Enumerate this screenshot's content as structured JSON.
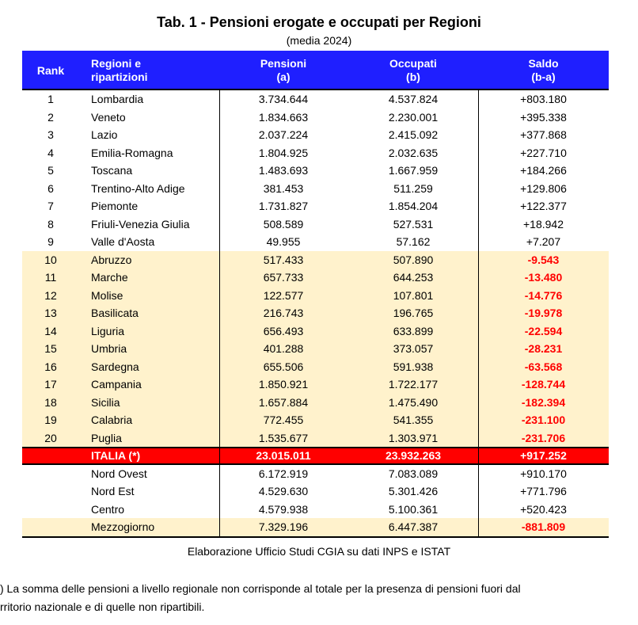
{
  "title": "Tab. 1 - Pensioni erogate e occupati per Regioni",
  "subtitle": "(media 2024)",
  "colors": {
    "header_bg": "#1f1fff",
    "negative_bg": "#fff2cc",
    "total_bg": "#ff0000",
    "negative_text": "#ff0000"
  },
  "headers": {
    "rank": "Rank",
    "region_1": "Regioni e",
    "region_2": "ripartizioni",
    "pensioni_1": "Pensioni",
    "pensioni_2": "(a)",
    "occupati_1": "Occupati",
    "occupati_2": "(b)",
    "saldo_1": "Saldo",
    "saldo_2": "(b-a)"
  },
  "rows": [
    {
      "rank": "1",
      "region": "Lombardia",
      "pensioni": "3.734.644",
      "occupati": "4.537.824",
      "saldo": "+803.180"
    },
    {
      "rank": "2",
      "region": "Veneto",
      "pensioni": "1.834.663",
      "occupati": "2.230.001",
      "saldo": "+395.338"
    },
    {
      "rank": "3",
      "region": "Lazio",
      "pensioni": "2.037.224",
      "occupati": "2.415.092",
      "saldo": "+377.868"
    },
    {
      "rank": "4",
      "region": "Emilia-Romagna",
      "pensioni": "1.804.925",
      "occupati": "2.032.635",
      "saldo": "+227.710"
    },
    {
      "rank": "5",
      "region": "Toscana",
      "pensioni": "1.483.693",
      "occupati": "1.667.959",
      "saldo": "+184.266"
    },
    {
      "rank": "6",
      "region": "Trentino-Alto Adige",
      "pensioni": "381.453",
      "occupati": "511.259",
      "saldo": "+129.806"
    },
    {
      "rank": "7",
      "region": "Piemonte",
      "pensioni": "1.731.827",
      "occupati": "1.854.204",
      "saldo": "+122.377"
    },
    {
      "rank": "8",
      "region": "Friuli-Venezia Giulia",
      "pensioni": "508.589",
      "occupati": "527.531",
      "saldo": "+18.942"
    },
    {
      "rank": "9",
      "region": "Valle d'Aosta",
      "pensioni": "49.955",
      "occupati": "57.162",
      "saldo": "+7.207"
    },
    {
      "rank": "10",
      "region": "Abruzzo",
      "pensioni": "517.433",
      "occupati": "507.890",
      "saldo": "-9.543"
    },
    {
      "rank": "11",
      "region": "Marche",
      "pensioni": "657.733",
      "occupati": "644.253",
      "saldo": "-13.480"
    },
    {
      "rank": "12",
      "region": "Molise",
      "pensioni": "122.577",
      "occupati": "107.801",
      "saldo": "-14.776"
    },
    {
      "rank": "13",
      "region": "Basilicata",
      "pensioni": "216.743",
      "occupati": "196.765",
      "saldo": "-19.978"
    },
    {
      "rank": "14",
      "region": "Liguria",
      "pensioni": "656.493",
      "occupati": "633.899",
      "saldo": "-22.594"
    },
    {
      "rank": "15",
      "region": "Umbria",
      "pensioni": "401.288",
      "occupati": "373.057",
      "saldo": "-28.231"
    },
    {
      "rank": "16",
      "region": "Sardegna",
      "pensioni": "655.506",
      "occupati": "591.938",
      "saldo": "-63.568"
    },
    {
      "rank": "17",
      "region": "Campania",
      "pensioni": "1.850.921",
      "occupati": "1.722.177",
      "saldo": "-128.744"
    },
    {
      "rank": "18",
      "region": "Sicilia",
      "pensioni": "1.657.884",
      "occupati": "1.475.490",
      "saldo": "-182.394"
    },
    {
      "rank": "19",
      "region": "Calabria",
      "pensioni": "772.455",
      "occupati": "541.355",
      "saldo": "-231.100"
    },
    {
      "rank": "20",
      "region": "Puglia",
      "pensioni": "1.535.677",
      "occupati": "1.303.971",
      "saldo": "-231.706"
    }
  ],
  "total": {
    "region": "ITALIA (*)",
    "pensioni": "23.015.011",
    "occupati": "23.932.263",
    "saldo": "+917.252"
  },
  "areas": [
    {
      "region": "Nord Ovest",
      "pensioni": "6.172.919",
      "occupati": "7.083.089",
      "saldo": "+910.170"
    },
    {
      "region": "Nord Est",
      "pensioni": "4.529.630",
      "occupati": "5.301.426",
      "saldo": "+771.796"
    },
    {
      "region": "Centro",
      "pensioni": "4.579.938",
      "occupati": "5.100.361",
      "saldo": "+520.423"
    },
    {
      "region": "Mezzogiorno",
      "pensioni": "7.329.196",
      "occupati": "6.447.387",
      "saldo": "-881.809"
    }
  ],
  "source": "Elaborazione Ufficio Studi CGIA su dati INPS e ISTAT",
  "footnote_1": ") La somma delle pensioni a livello regionale non corrisponde al totale per la presenza di pensioni fuori dal",
  "footnote_2": "rritorio nazionale e di quelle non ripartibili."
}
